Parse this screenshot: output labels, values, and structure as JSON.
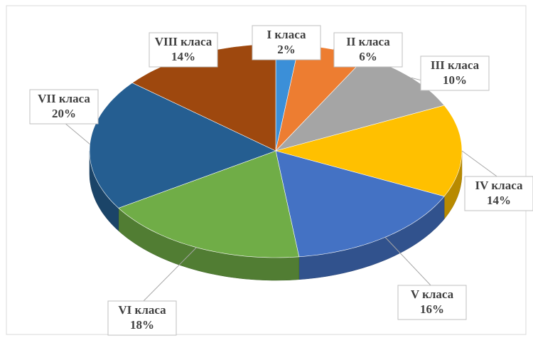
{
  "chart_data": {
    "type": "pie",
    "categories": [
      "I класа",
      "II класа",
      "III класа",
      "IV класа",
      "V класа",
      "VI класа",
      "VII класа",
      "VIII класа"
    ],
    "values": [
      2,
      6,
      10,
      14,
      16,
      18,
      20,
      14
    ],
    "value_labels": [
      "2%",
      "6%",
      "10%",
      "14%",
      "16%",
      "18%",
      "20%",
      "14%"
    ],
    "colors": [
      "#3b8fd8",
      "#ed7d31",
      "#a5a5a5",
      "#ffc000",
      "#4472c4",
      "#70ad47",
      "#255e91",
      "#9e480e"
    ]
  }
}
